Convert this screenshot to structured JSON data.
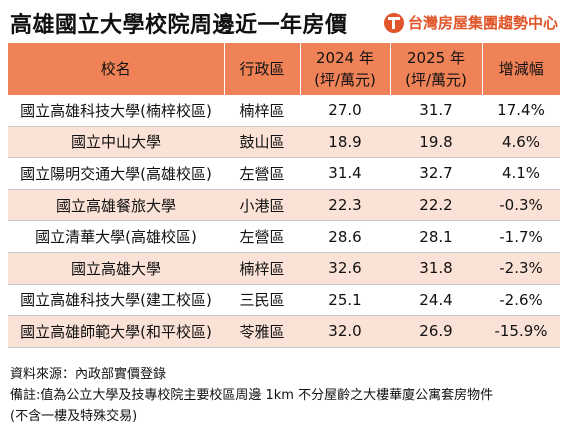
{
  "header": {
    "title": "高雄國立大學校院周邊近一年房價",
    "brand": "台灣房屋集團趨勢中心",
    "brand_icon": "taiwan-house-logo-icon",
    "accent_color": "#ef8257",
    "alt_row_color": "#fbe2d6"
  },
  "table": {
    "columns": [
      "校名",
      "行政區",
      "2024 年\n(坪/萬元)",
      "2025 年\n(坪/萬元)",
      "增減幅"
    ],
    "rows": [
      {
        "school": "國立高雄科技大學(楠梓校區)",
        "district": "楠梓區",
        "y2024": "27.0",
        "y2025": "31.7",
        "change": "17.4%"
      },
      {
        "school": "國立中山大學",
        "district": "鼓山區",
        "y2024": "18.9",
        "y2025": "19.8",
        "change": "4.6%"
      },
      {
        "school": "國立陽明交通大學(高雄校區)",
        "district": "左營區",
        "y2024": "31.4",
        "y2025": "32.7",
        "change": "4.1%"
      },
      {
        "school": "國立高雄餐旅大學",
        "district": "小港區",
        "y2024": "22.3",
        "y2025": "22.2",
        "change": "-0.3%"
      },
      {
        "school": "國立清華大學(高雄校區)",
        "district": "左營區",
        "y2024": "28.6",
        "y2025": "28.1",
        "change": "-1.7%"
      },
      {
        "school": "國立高雄大學",
        "district": "楠梓區",
        "y2024": "32.6",
        "y2025": "31.8",
        "change": "-2.3%"
      },
      {
        "school": "國立高雄科技大學(建工校區)",
        "district": "三民區",
        "y2024": "25.1",
        "y2025": "24.4",
        "change": "-2.6%"
      },
      {
        "school": "國立高雄師範大學(和平校區)",
        "district": "苓雅區",
        "y2024": "32.0",
        "y2025": "26.9",
        "change": "-15.9%"
      }
    ]
  },
  "notes": {
    "source": "資料來源：內政部實價登錄",
    "remark_1": "備註:值為公立大學及技專校院主要校區周邊 1km 不分屋齡之大樓華廈公寓套房物件",
    "remark_2": "(不含一樓及特殊交易)"
  }
}
